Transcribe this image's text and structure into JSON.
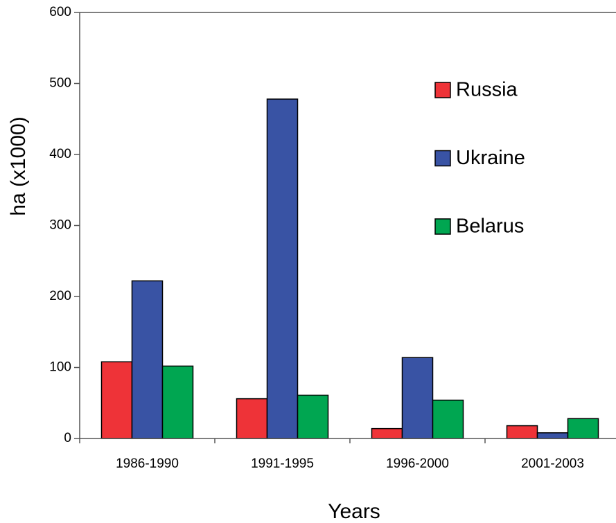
{
  "chart_data": {
    "type": "bar",
    "xlabel": "Years",
    "ylabel": "ha (x1000)",
    "categories": [
      "1986-1990",
      "1991-1995",
      "1996-2000",
      "2001-2003"
    ],
    "series": [
      {
        "name": "Russia",
        "color": "#ee3338",
        "values": [
          108,
          56,
          14,
          18
        ]
      },
      {
        "name": "Ukraine",
        "color": "#3953a4",
        "values": [
          222,
          478,
          114,
          8
        ]
      },
      {
        "name": "Belarus",
        "color": "#00a651",
        "values": [
          102,
          61,
          54,
          28
        ]
      }
    ],
    "ylim": [
      0,
      600
    ],
    "yticks": [
      0,
      100,
      200,
      300,
      400,
      500,
      600
    ],
    "legend": "upper right"
  }
}
